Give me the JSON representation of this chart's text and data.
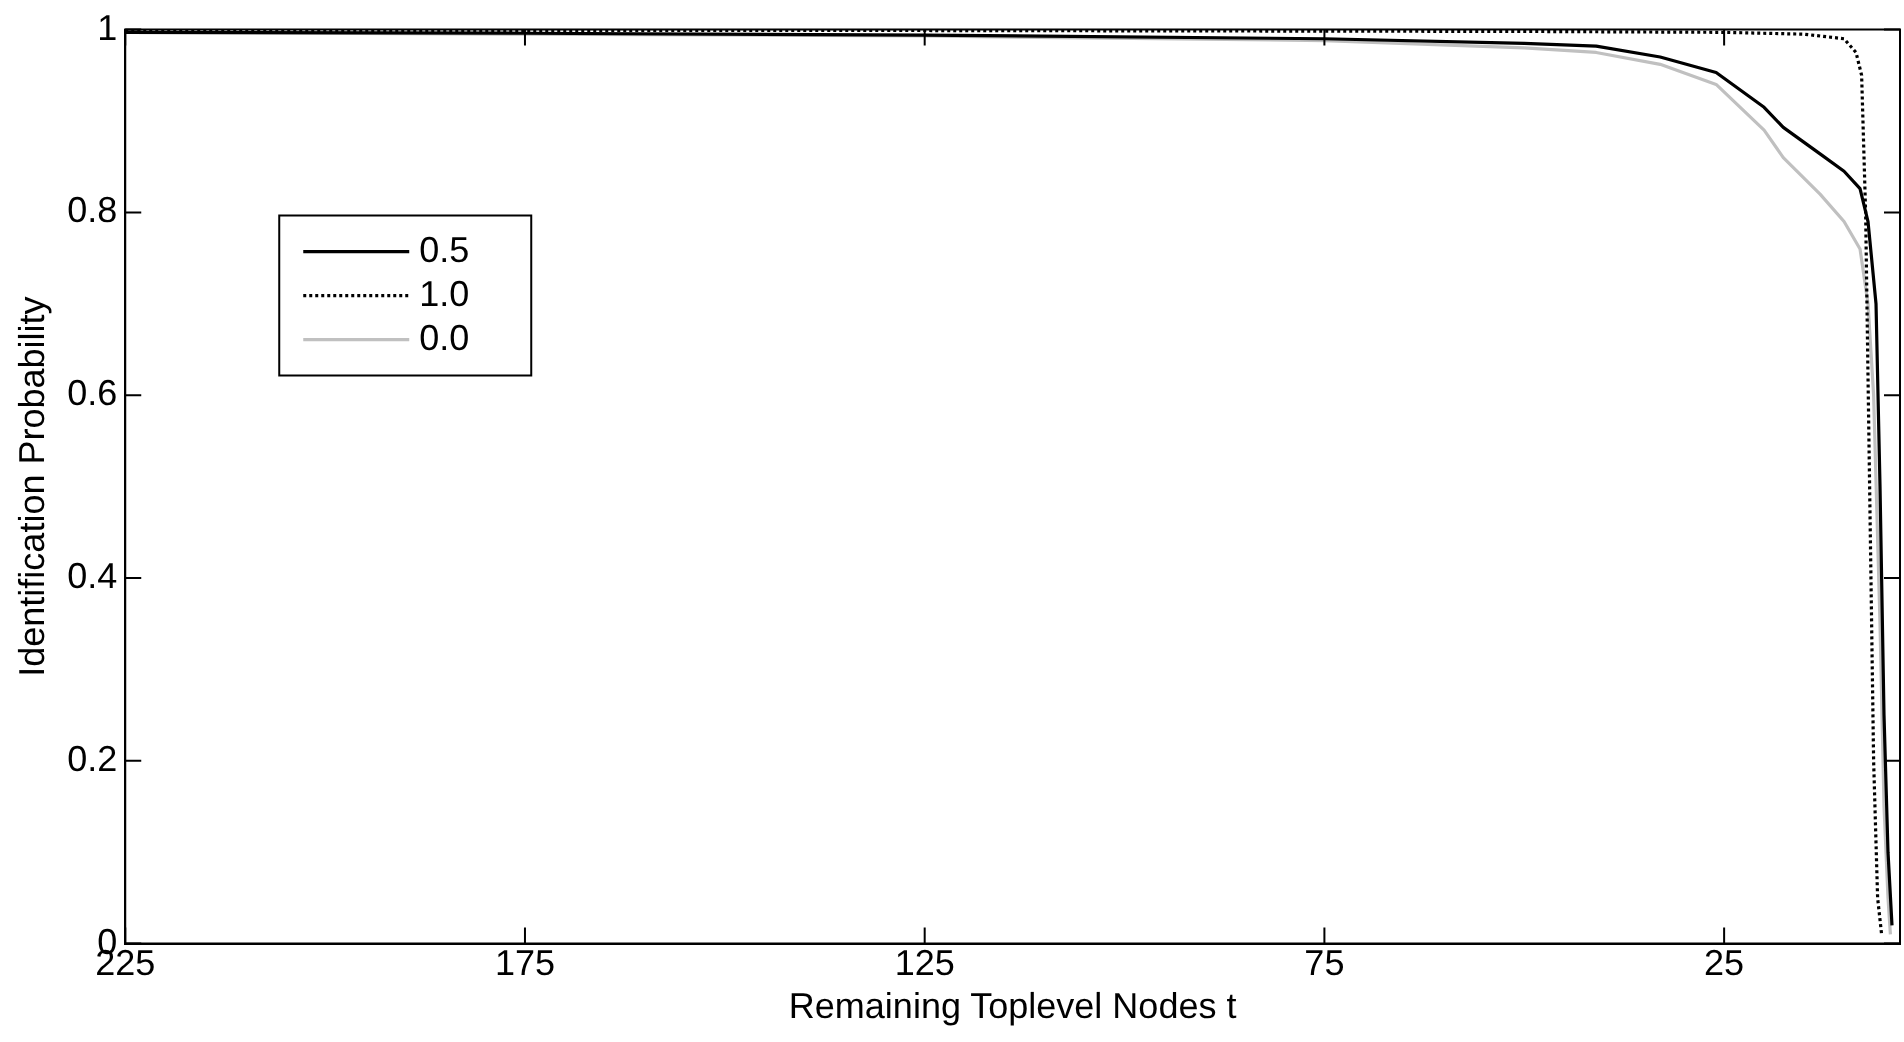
{
  "chart_data": {
    "type": "line",
    "xlabel": "Remaining Toplevel Nodes t",
    "ylabel": "Identification Probability",
    "xlim": [
      225,
      3
    ],
    "xticks": [
      225,
      175,
      125,
      75,
      25
    ],
    "ylim": [
      0,
      1
    ],
    "yticks": [
      0,
      0.2,
      0.4,
      0.6,
      0.8,
      1
    ],
    "grid": false,
    "legend": "top left",
    "marker": "none",
    "series": [
      {
        "name": "0.5",
        "color": "#000000",
        "line_style": "solid",
        "x": [
          225,
          175,
          125,
          75,
          50,
          41,
          33,
          26,
          20,
          17.6,
          13,
          10,
          8,
          7,
          6,
          5.5,
          5,
          4.5,
          4
        ],
        "values": [
          0.997,
          0.996,
          0.994,
          0.99,
          0.985,
          0.982,
          0.97,
          0.953,
          0.915,
          0.893,
          0.864,
          0.845,
          0.826,
          0.79,
          0.7,
          0.5,
          0.25,
          0.1,
          0.02
        ]
      },
      {
        "name": "1.0",
        "color": "#000000",
        "line_style": "dotted",
        "x": [
          225,
          125,
          50,
          25,
          15,
          10,
          8.5,
          7.8,
          7.3,
          6.8,
          6.3,
          5.8,
          5.3
        ],
        "values": [
          0.999,
          0.999,
          0.998,
          0.997,
          0.995,
          0.99,
          0.975,
          0.95,
          0.8,
          0.5,
          0.2,
          0.05,
          0.01
        ]
      },
      {
        "name": "0.0",
        "color": "#c0c0c0",
        "line_style": "solid",
        "x": [
          225,
          175,
          125,
          75,
          50,
          41,
          33,
          26,
          20,
          17.6,
          13,
          10,
          8,
          7,
          6.3,
          5.5,
          5,
          4.5,
          4.2
        ],
        "values": [
          0.997,
          0.995,
          0.993,
          0.988,
          0.98,
          0.975,
          0.962,
          0.94,
          0.89,
          0.86,
          0.82,
          0.79,
          0.76,
          0.7,
          0.6,
          0.35,
          0.15,
          0.05,
          0.01
        ]
      }
    ]
  }
}
